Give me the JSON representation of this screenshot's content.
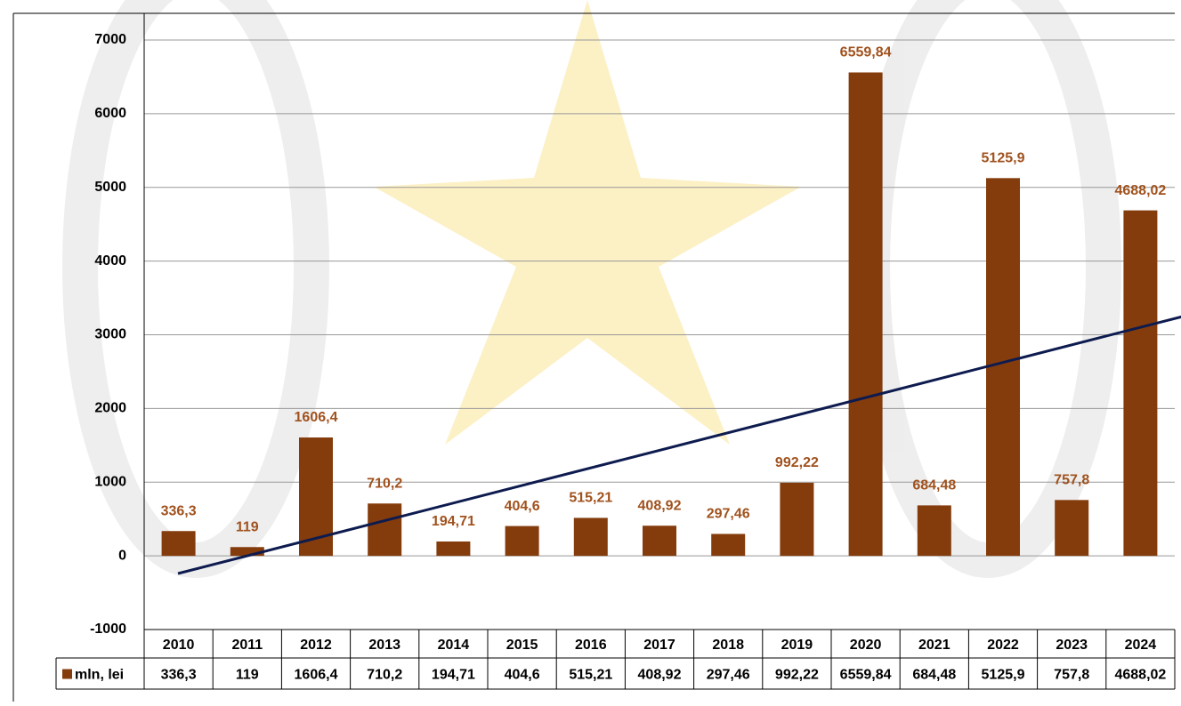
{
  "chart_data": {
    "type": "bar",
    "categories": [
      "2010",
      "2011",
      "2012",
      "2013",
      "2014",
      "2015",
      "2016",
      "2017",
      "2018",
      "2019",
      "2020",
      "2021",
      "2022",
      "2023",
      "2024"
    ],
    "series": [
      {
        "name": "mln, lei",
        "color": "#843c0c",
        "label_color": "#a0521e",
        "values": [
          336.3,
          119,
          1606.4,
          710.2,
          194.71,
          404.6,
          515.21,
          408.92,
          297.46,
          992.22,
          6559.84,
          684.48,
          5125.9,
          757.8,
          4688.02
        ],
        "value_labels": [
          "336,3",
          "119",
          "1606,4",
          "710,2",
          "194,71",
          "404,6",
          "515,21",
          "408,92",
          "297,46",
          "992,22",
          "6559,84",
          "684,48",
          "5125,9",
          "757,8",
          "4688,02"
        ]
      }
    ],
    "ylim": [
      -1000,
      7000
    ],
    "yticks": [
      -1000,
      0,
      1000,
      2000,
      3000,
      4000,
      5000,
      6000,
      7000
    ],
    "grid": true,
    "data_table": true
  }
}
